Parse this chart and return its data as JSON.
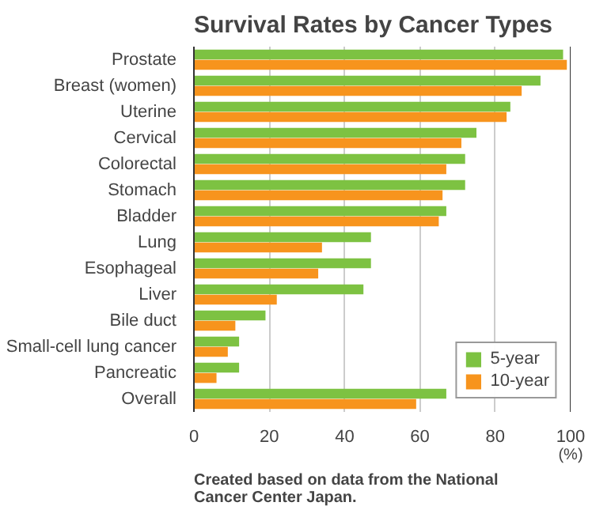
{
  "chart_data": {
    "type": "bar",
    "orientation": "horizontal",
    "title": "Survival Rates by Cancer Types",
    "xlabel": "(%)",
    "categories": [
      "Prostate",
      "Breast (women)",
      "Uterine",
      "Cervical",
      "Colorectal",
      "Stomach",
      "Bladder",
      "Lung",
      "Esophageal",
      "Liver",
      "Bile duct",
      "Small-cell lung cancer",
      "Pancreatic",
      "Overall"
    ],
    "series": [
      {
        "name": "5-year",
        "color": "#7dc242",
        "values": [
          98,
          92,
          84,
          75,
          72,
          72,
          67,
          47,
          47,
          45,
          19,
          12,
          12,
          67
        ]
      },
      {
        "name": "10-year",
        "color": "#f7941d",
        "values": [
          99,
          87,
          83,
          71,
          67,
          66,
          65,
          34,
          33,
          22,
          11,
          9,
          6,
          59
        ]
      }
    ],
    "xlim": [
      0,
      100
    ],
    "xticks": [
      0,
      20,
      40,
      60,
      80,
      100
    ],
    "grid": "x",
    "legend": "bottom right",
    "annotations": [
      "Created based on data from the National Cancer Center Japan."
    ]
  }
}
